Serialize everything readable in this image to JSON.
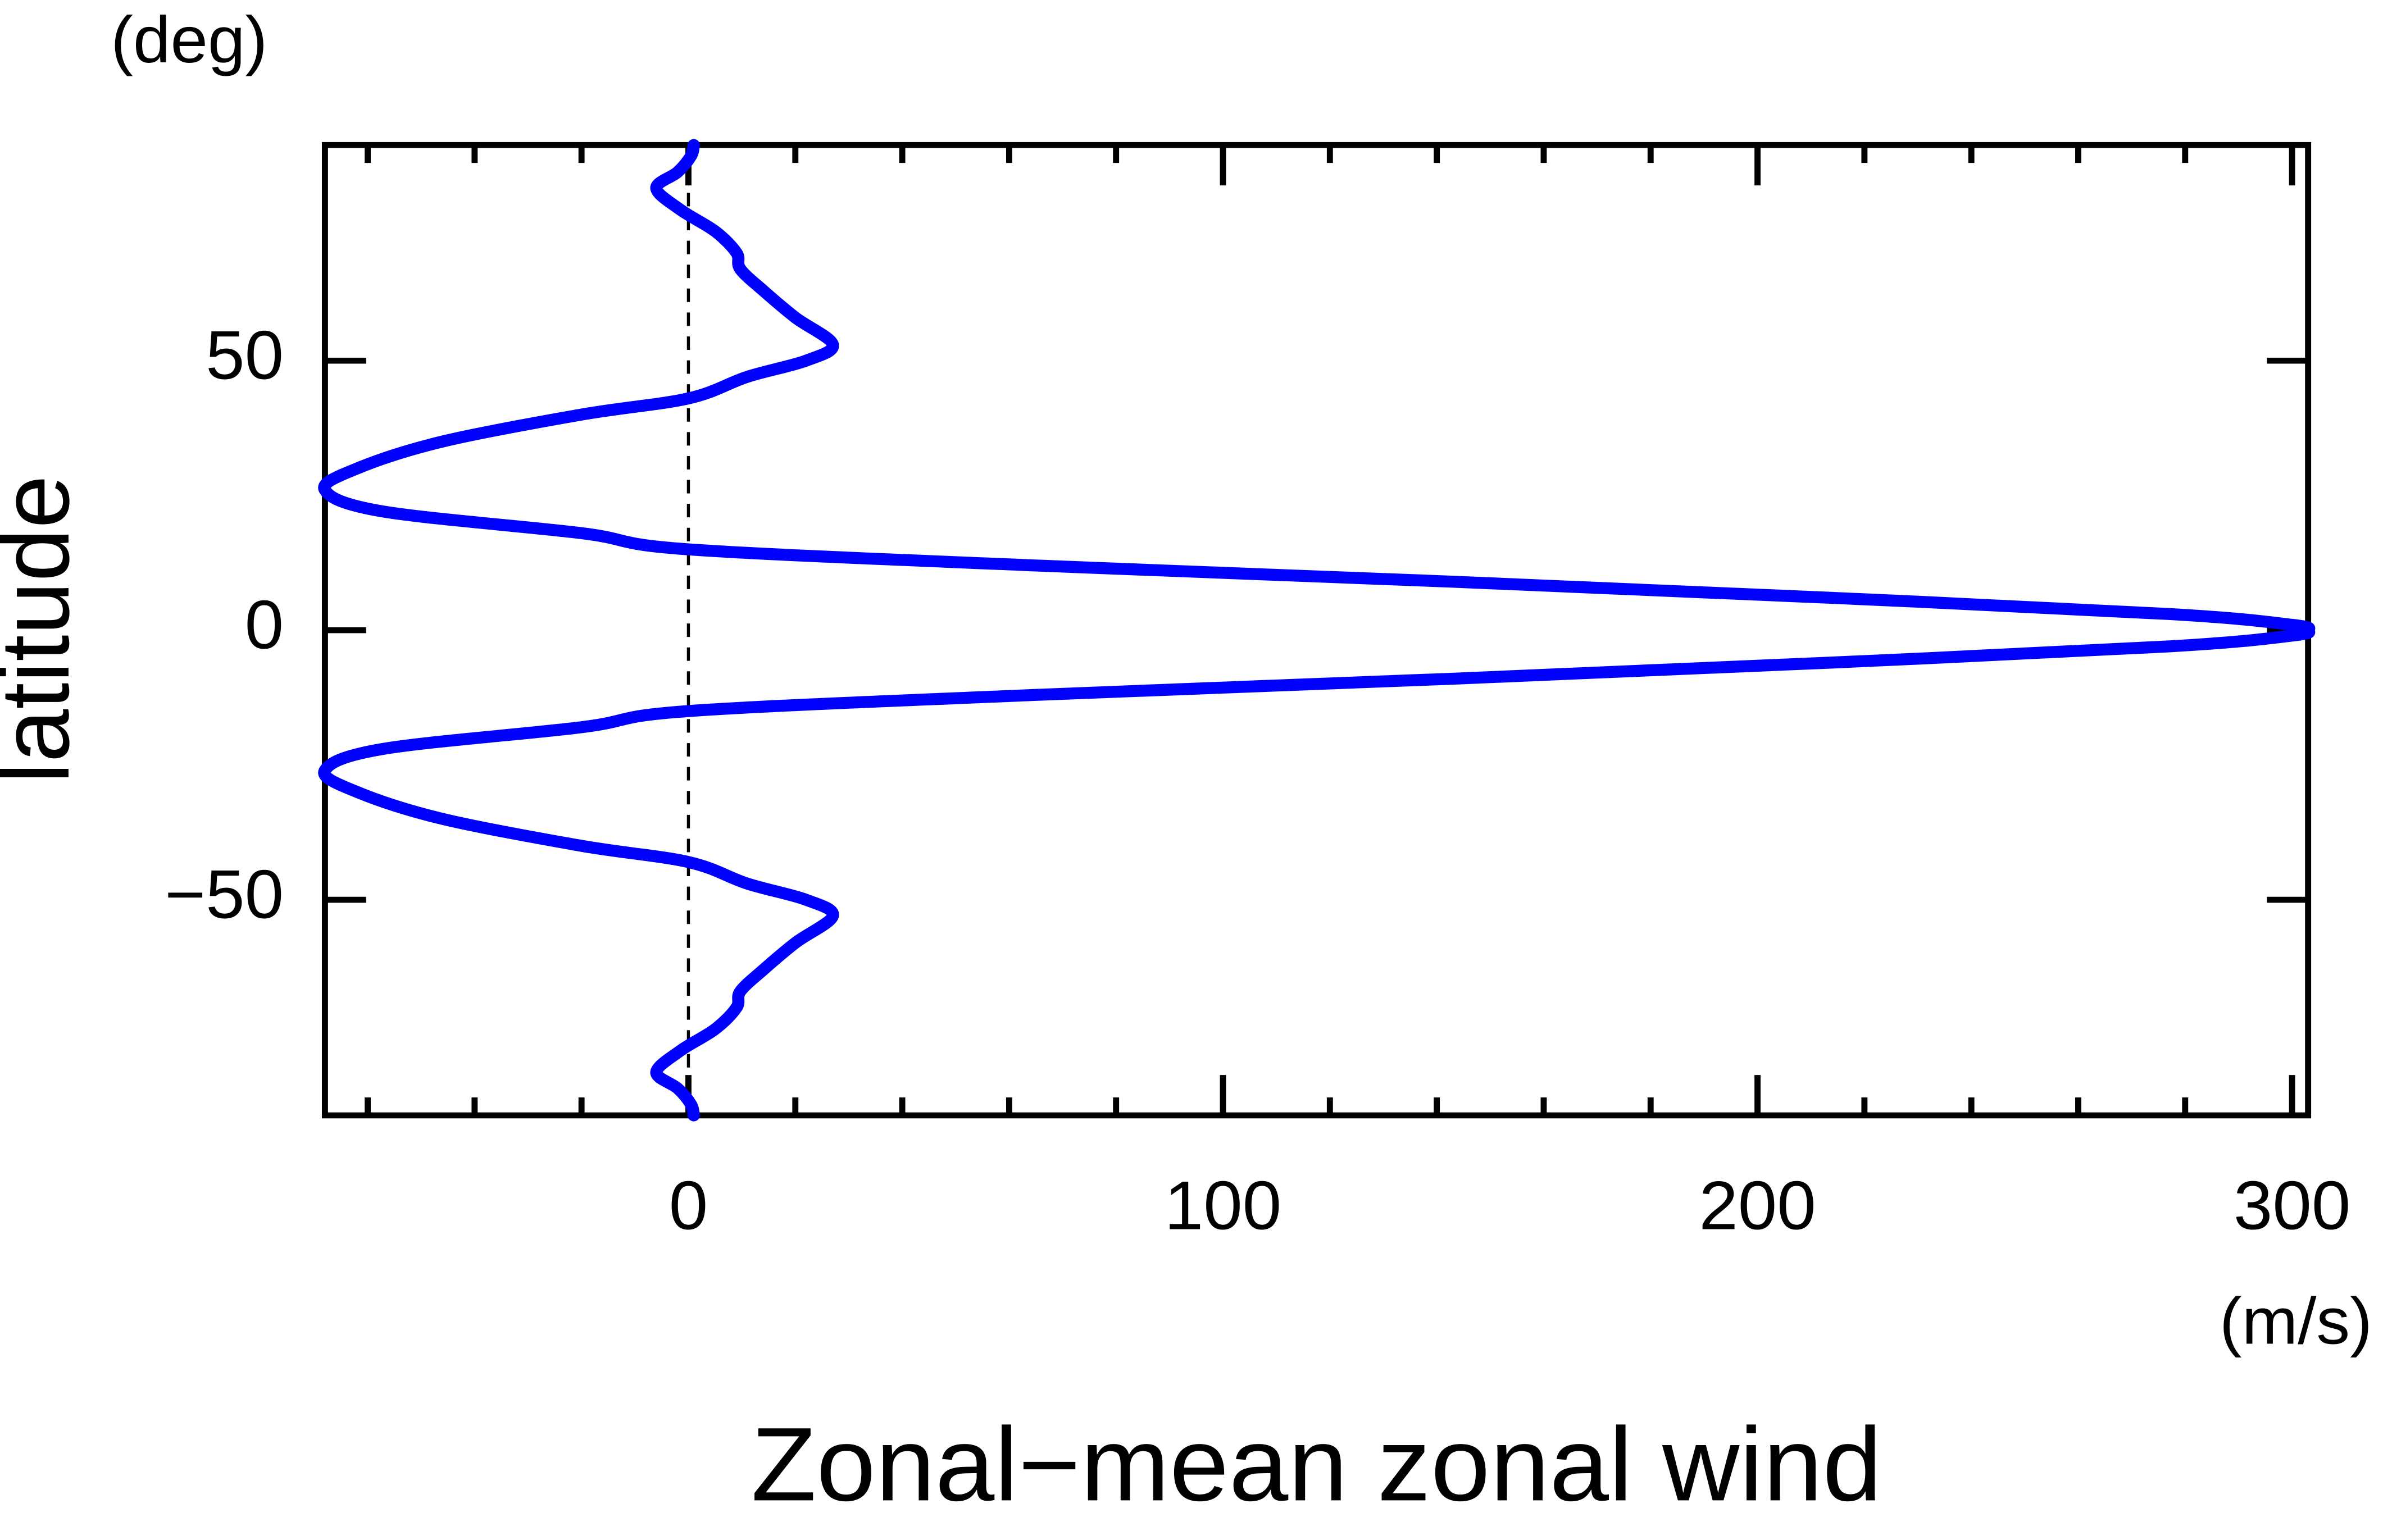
{
  "chart_data": {
    "type": "line",
    "title": "Zonal−mean zonal wind",
    "xlabel": "(m/s)",
    "ylabel": "latitude",
    "ylabel_unit": "(deg)",
    "xlim": [
      -68,
      303
    ],
    "ylim": [
      -90,
      90
    ],
    "xticks": [
      0,
      100,
      200,
      300
    ],
    "xminorticks": [
      -60,
      -40,
      -20,
      20,
      40,
      60,
      80,
      120,
      140,
      160,
      180,
      220,
      240,
      260,
      280
    ],
    "yticks": [
      {
        "value": -50,
        "label": "−50"
      },
      0,
      50
    ],
    "reference_x": 0,
    "grid": false,
    "series": [
      {
        "color": "#0000ff",
        "x": [
          1,
          0.5,
          -2,
          -6,
          -1.5,
          5,
          9,
          9.7,
          14,
          20,
          27,
          22,
          11,
          0,
          -20,
          -46,
          -62,
          -68,
          -57,
          -20,
          0,
          65,
          143,
          214,
          277,
          300,
          303,
          300,
          277,
          214,
          143,
          65,
          0,
          -20,
          -57,
          -68,
          -62,
          -46,
          -20,
          0,
          11,
          22,
          27,
          20,
          14,
          9.7,
          9,
          5,
          -1.5,
          -6,
          -2,
          0.5,
          1
        ],
        "y": [
          -90,
          -88,
          -85,
          -82,
          -78,
          -74,
          -70,
          -67,
          -63,
          -58,
          -53,
          -50,
          -47,
          -43,
          -40,
          -35,
          -30,
          -26,
          -22,
          -18,
          -15,
          -12,
          -9,
          -6,
          -3,
          -1,
          0,
          1,
          3,
          6,
          9,
          12,
          15,
          18,
          22,
          26,
          30,
          35,
          40,
          43,
          47,
          50,
          53,
          58,
          63,
          67,
          70,
          74,
          78,
          82,
          85,
          88,
          90
        ]
      }
    ]
  }
}
